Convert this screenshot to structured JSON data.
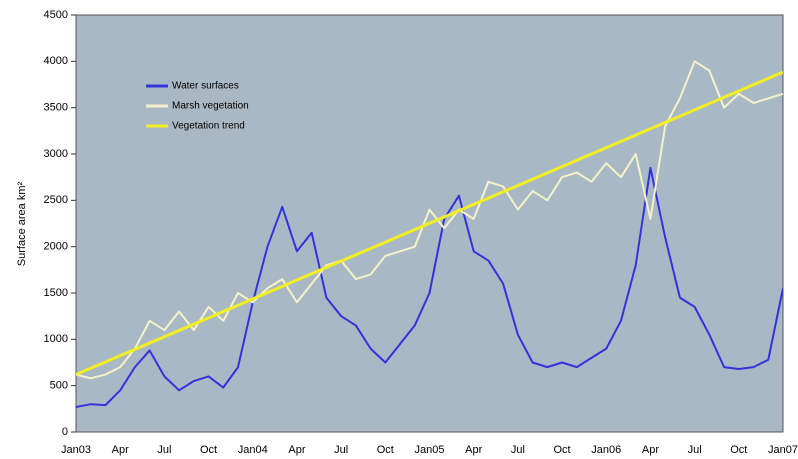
{
  "chart_data": {
    "type": "line",
    "ylabel": "Surface area km²",
    "categories": [
      "Jan03",
      null,
      null,
      "Apr",
      null,
      null,
      "Jul",
      null,
      null,
      "Oct",
      null,
      null,
      "Jan04",
      null,
      null,
      "Apr",
      null,
      null,
      "Jul",
      null,
      null,
      "Oct",
      null,
      null,
      "Jan05",
      null,
      null,
      "Apr",
      null,
      null,
      "Jul",
      null,
      null,
      "Oct",
      null,
      null,
      "Jan06",
      null,
      null,
      "Apr",
      null,
      null,
      "Jul",
      null,
      null,
      "Oct",
      null,
      null,
      "Jan07"
    ],
    "series": [
      {
        "name": "Water surfaces",
        "color": "#3333dd",
        "values": [
          270,
          300,
          290,
          450,
          700,
          880,
          600,
          450,
          550,
          600,
          480,
          700,
          1400,
          2000,
          2430,
          1950,
          2150,
          1450,
          1250,
          1150,
          900,
          750,
          950,
          1150,
          1500,
          2300,
          2550,
          1950,
          1850,
          1600,
          1050,
          750,
          700,
          750,
          700,
          800,
          900,
          1200,
          1800,
          2850,
          2100,
          1450,
          1350,
          1050,
          700,
          680,
          700,
          780,
          1550
        ]
      },
      {
        "name": "Marsh vegetation",
        "color": "#f4f2c8",
        "values": [
          620,
          580,
          620,
          700,
          900,
          1200,
          1100,
          1300,
          1100,
          1350,
          1200,
          1500,
          1400,
          1550,
          1650,
          1400,
          1600,
          1800,
          1850,
          1650,
          1700,
          1900,
          1950,
          2000,
          2400,
          2200,
          2400,
          2300,
          2700,
          2650,
          2400,
          2600,
          2500,
          2750,
          2800,
          2700,
          2900,
          2750,
          3000,
          2300,
          3300,
          3600,
          4000,
          3900,
          3500,
          3650,
          3550,
          3600,
          3650
        ]
      },
      {
        "name": "Vegetation trend",
        "color": "#f2ee22",
        "values": [
          620,
          688,
          756,
          824,
          892,
          960,
          1028,
          1096,
          1164,
          1232,
          1300,
          1368,
          1436,
          1504,
          1572,
          1640,
          1708,
          1776,
          1844,
          1912,
          1980,
          2048,
          2116,
          2184,
          2252,
          2320,
          2388,
          2456,
          2524,
          2592,
          2660,
          2728,
          2796,
          2864,
          2932,
          3000,
          3068,
          3136,
          3204,
          3272,
          3340,
          3408,
          3476,
          3544,
          3612,
          3680,
          3748,
          3816,
          3884
        ]
      }
    ],
    "ylim": [
      0,
      4500
    ],
    "yticks": [
      0,
      500,
      1000,
      1500,
      2000,
      2500,
      3000,
      3500,
      4000,
      4500
    ],
    "background": "#a9b8c5"
  }
}
